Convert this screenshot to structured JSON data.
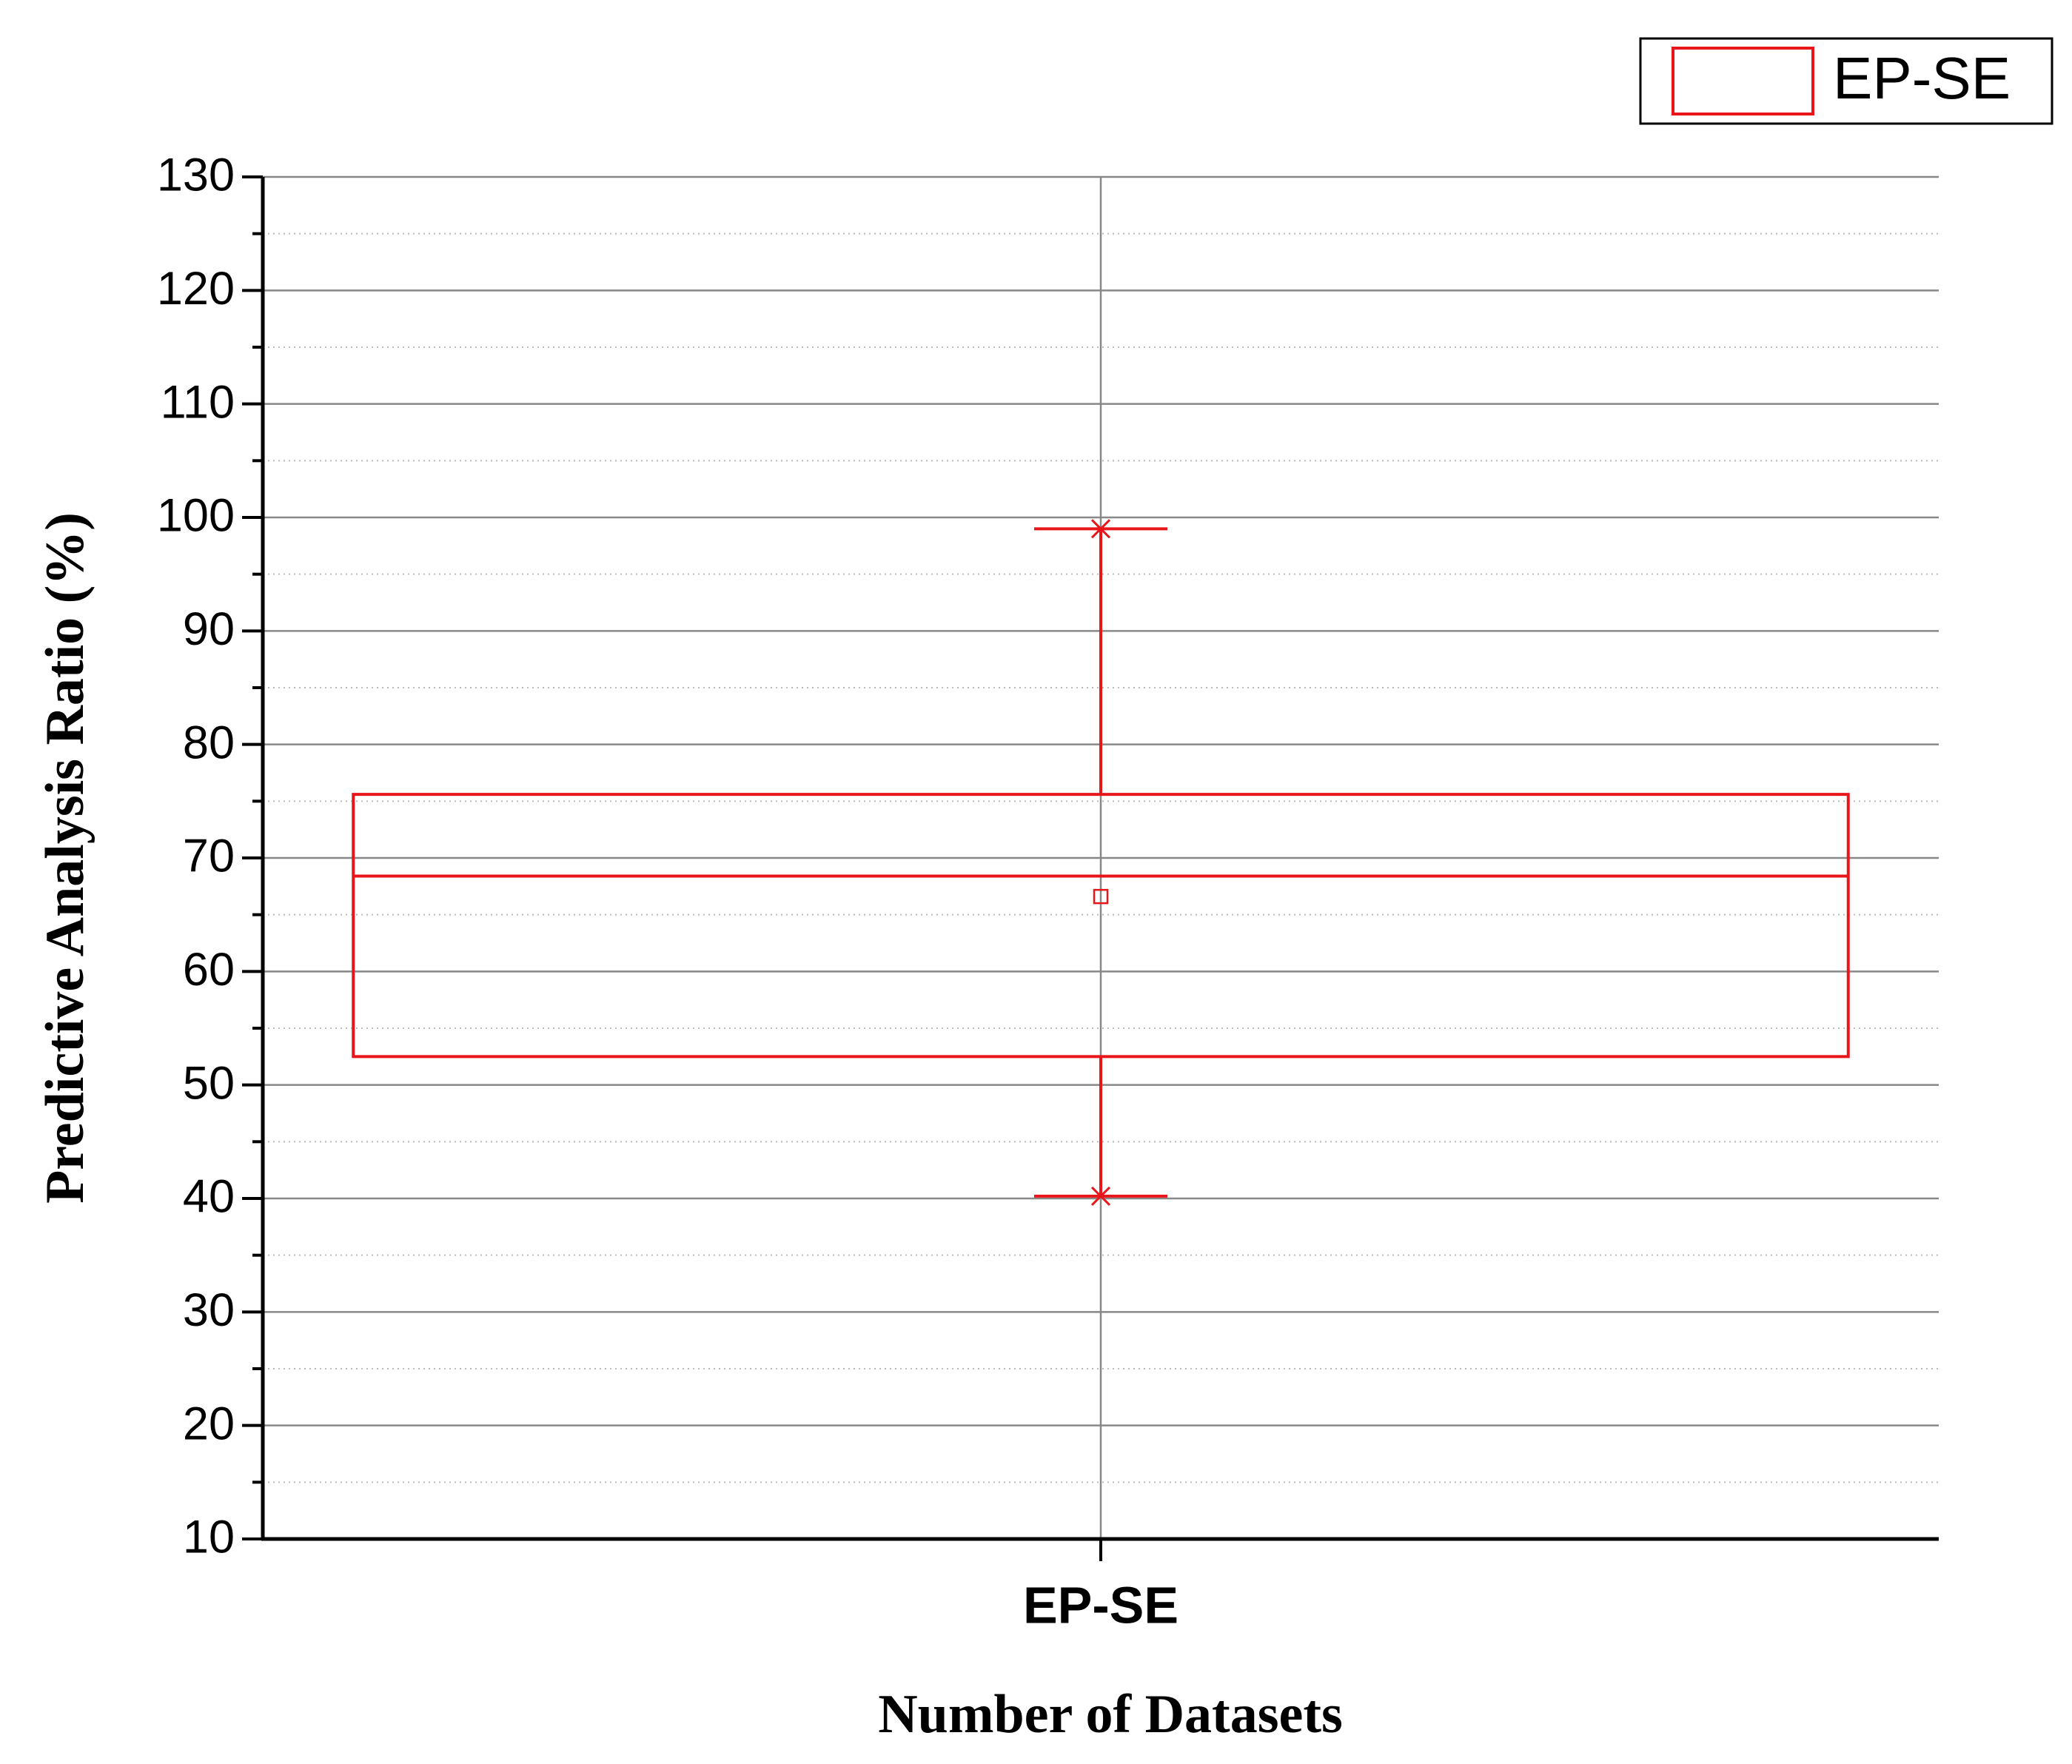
{
  "chart_data": {
    "type": "box",
    "xlabel": "Number of Datasets",
    "ylabel": "Predictive Analysis Ratio (%)",
    "categories": [
      "EP-SE"
    ],
    "series": [
      {
        "name": "EP-SE",
        "color": "#e8161b",
        "min": 40.2,
        "q1": 52.5,
        "median": 68.4,
        "q3": 75.6,
        "max": 99,
        "mean": 66.6
      }
    ],
    "ylim": [
      10,
      130
    ],
    "yticks": [
      10,
      20,
      30,
      40,
      50,
      60,
      70,
      80,
      90,
      100,
      110,
      120,
      130
    ],
    "yminorticks": [
      15,
      25,
      35,
      45,
      55,
      65,
      75,
      85,
      95,
      105,
      115,
      125
    ],
    "grid": true,
    "legend": "top-right"
  }
}
